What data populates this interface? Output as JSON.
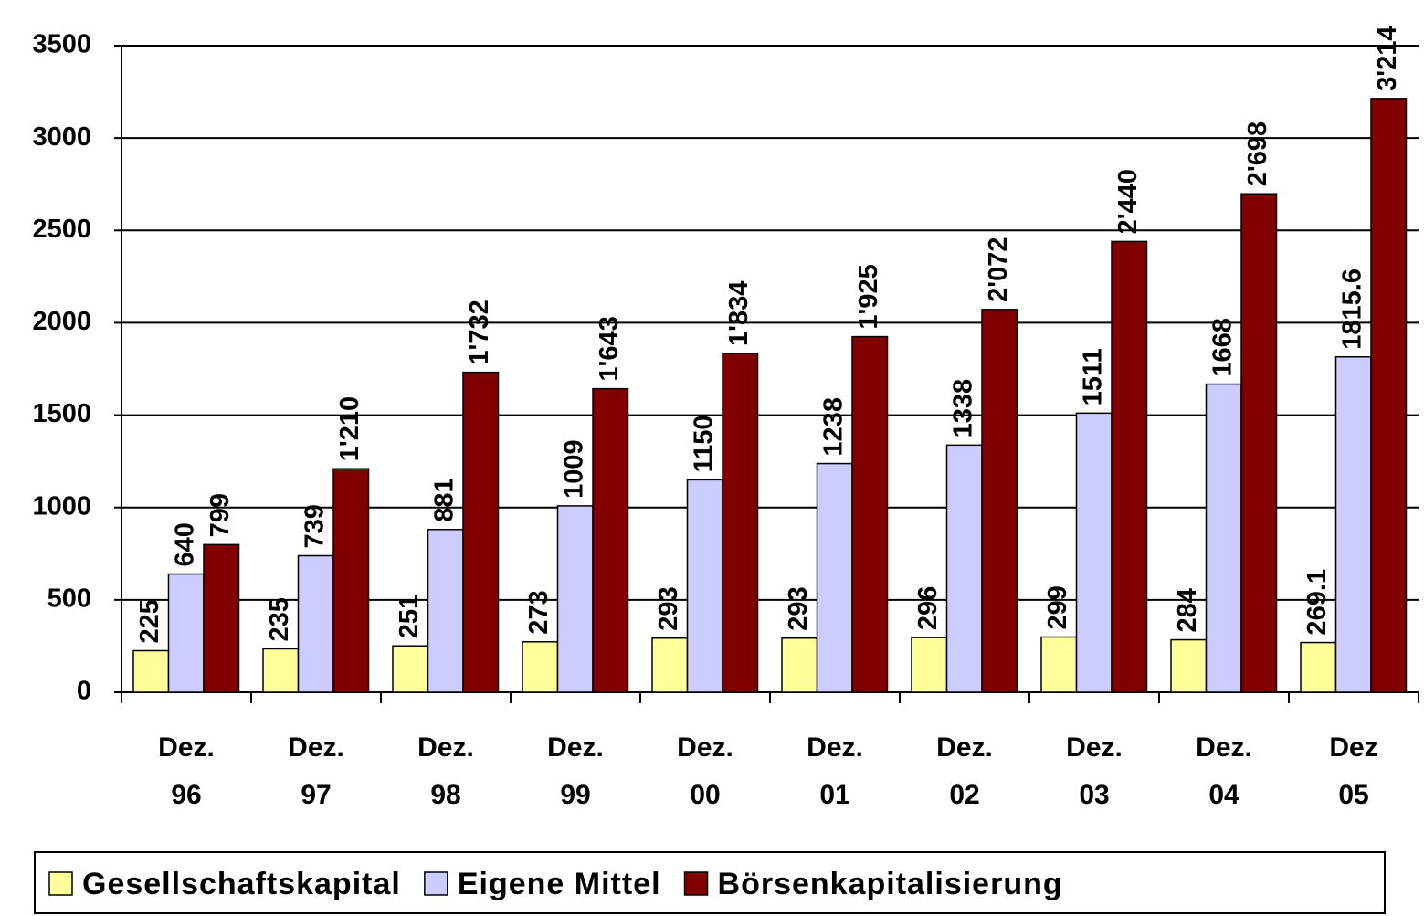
{
  "chart_data": {
    "type": "bar",
    "categories": [
      "Dez. 96",
      "Dez. 97",
      "Dez. 98",
      "Dez. 99",
      "Dez. 00",
      "Dez. 01",
      "Dez. 02",
      "Dez. 03",
      "Dez. 04",
      "Dez 05"
    ],
    "series": [
      {
        "name": "Gesellschaftskapital",
        "color": "#ffff99",
        "values": [
          225,
          235,
          251,
          273,
          293,
          293,
          296,
          299,
          284,
          269.1
        ]
      },
      {
        "name": "Eigene Mittel",
        "color": "#ccccff",
        "values": [
          640,
          739,
          881,
          1009,
          1150,
          1238,
          1338,
          1511,
          1668,
          1815.6
        ]
      },
      {
        "name": "Börsenkapitalisierung",
        "color": "#800000",
        "values": [
          799,
          1210,
          1732,
          1643,
          1834,
          1925,
          2072,
          2440,
          2698,
          3214
        ],
        "value_labels": [
          "799",
          "1'210",
          "1'732",
          "1'643",
          "1'834",
          "1'925",
          "2'072",
          "2'440",
          "2'698",
          "3'214"
        ]
      }
    ],
    "ylim": [
      0,
      3500
    ],
    "yticks": [
      0,
      500,
      1000,
      1500,
      2000,
      2500,
      3000,
      3500
    ],
    "grid": true,
    "legend": "bottom"
  }
}
